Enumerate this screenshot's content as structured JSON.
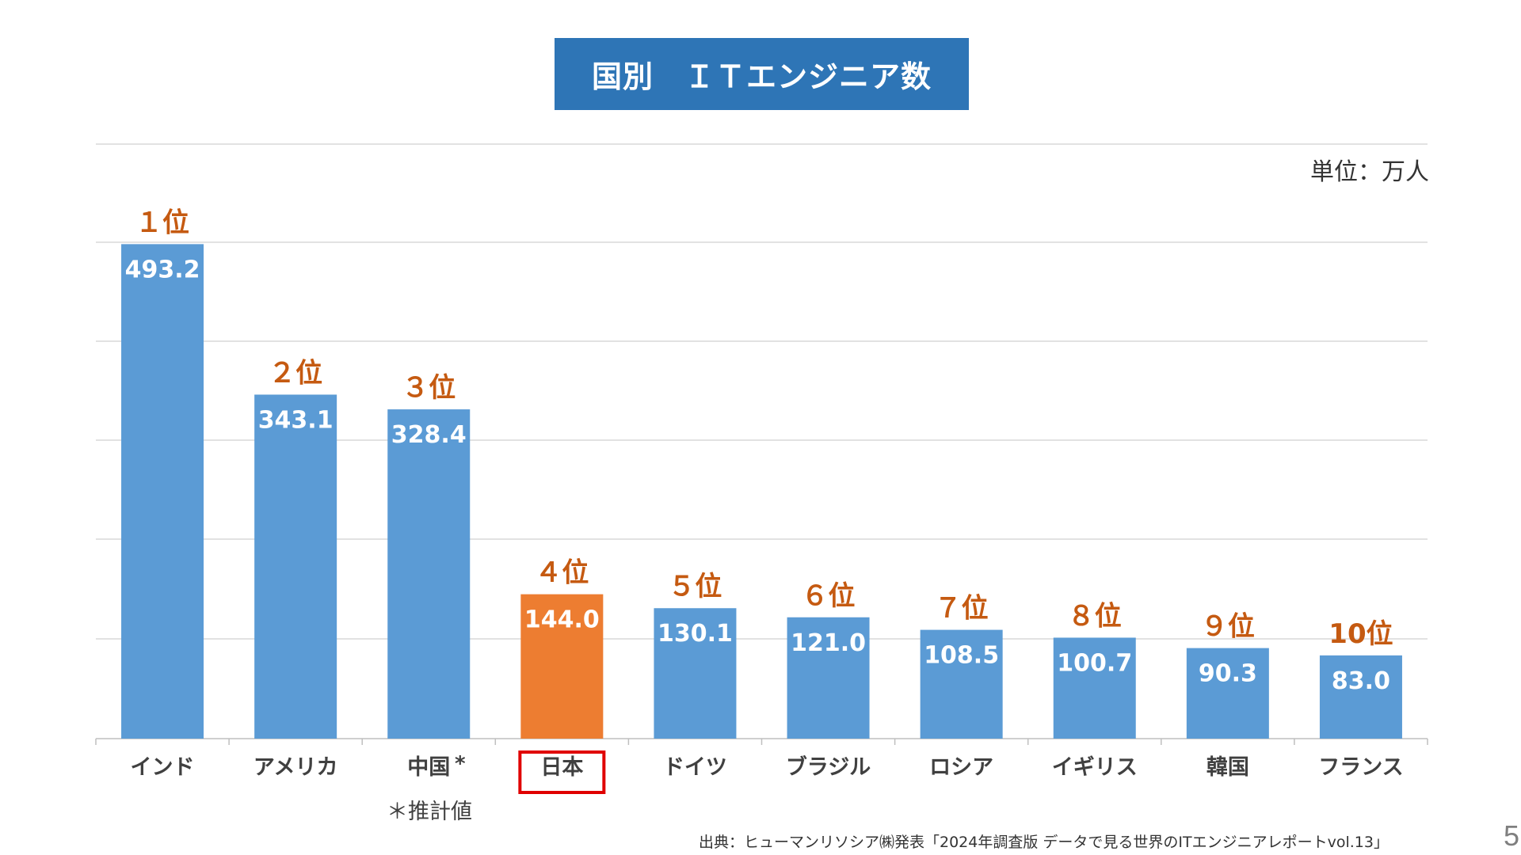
{
  "title": "国別　ＩＴエンジニア数",
  "unit": "単位：万人",
  "footnote_china": "＊推計値",
  "china_marker": "*",
  "source": "出典：ヒューマンリソシア㈱発表「2024年調査版 データで見る世界のITエンジニアレポートvol.13」",
  "page_number": "5",
  "colors": {
    "title_bg": "#2e75b6",
    "bar_default": "#5b9bd5",
    "bar_highlight": "#ed7d31",
    "rank_text": "#c55a11",
    "highlight_box": "#e00000",
    "gridline": "#d9d9d9"
  },
  "chart_data": {
    "type": "bar",
    "categories": [
      "インド",
      "アメリカ",
      "中国",
      "日本",
      "ドイツ",
      "ブラジル",
      "ロシア",
      "イギリス",
      "韓国",
      "フランス"
    ],
    "values": [
      493.2,
      343.1,
      328.4,
      144.0,
      130.1,
      121.0,
      108.5,
      100.7,
      90.3,
      83.0
    ],
    "value_labels": [
      "493.2",
      "343.1",
      "328.4",
      "144.0",
      "130.1",
      "121.0",
      "108.5",
      "100.7",
      "90.3",
      "83.0"
    ],
    "rank_labels": [
      "１位",
      "２位",
      "３位",
      "４位",
      "５位",
      "６位",
      "７位",
      "８位",
      "９位",
      "10位"
    ],
    "highlight_category": "日本",
    "grid": true,
    "xlabel": "",
    "ylabel": ""
  }
}
